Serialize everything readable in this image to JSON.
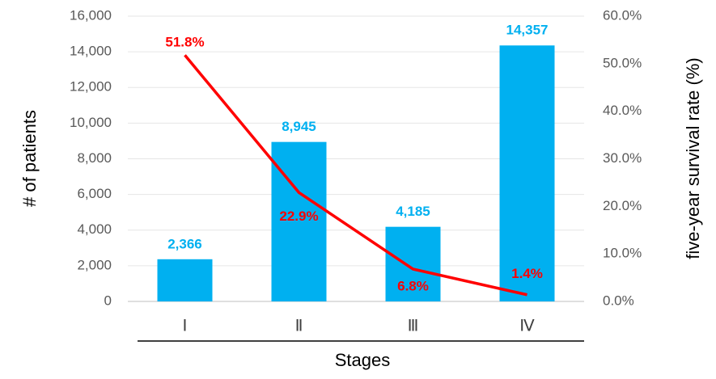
{
  "chart_data": {
    "type": "bar",
    "categories": [
      "Ⅰ",
      "Ⅱ",
      "Ⅲ",
      "Ⅳ"
    ],
    "x_label": "Stages",
    "y_label": "# of patients",
    "y2_label": "five-year survival rate (%)",
    "series": [
      {
        "type": "bar",
        "color": "#00b0f0",
        "values": [
          2366,
          8945,
          4185,
          14357
        ],
        "value_labels": [
          "2,366",
          "8,945",
          "4,185",
          "14,357"
        ]
      },
      {
        "type": "line",
        "axis": "y2",
        "color": "#ff0000",
        "values": [
          51.8,
          22.9,
          6.8,
          1.4
        ],
        "value_labels": [
          "51.8%",
          "22.9%",
          "6.8%",
          "1.4%"
        ]
      }
    ],
    "ylim": [
      0,
      16000
    ],
    "yticks": [
      0,
      {
        "value": 2000,
        "label": "2,000"
      },
      {
        "value": 4000,
        "label": "4,000"
      },
      {
        "value": 6000,
        "label": "6,000"
      },
      {
        "value": 8000,
        "label": "8,000"
      },
      {
        "value": 10000,
        "label": "10,000"
      },
      {
        "value": 12000,
        "label": "12,000"
      },
      {
        "value": 14000,
        "label": "14,000"
      },
      {
        "value": 16000,
        "label": "16,000"
      }
    ],
    "y2lim": [
      0,
      60
    ],
    "y2ticks": [
      {
        "value": 0,
        "label": "0.0%"
      },
      {
        "value": 10,
        "label": "10.0%"
      },
      {
        "value": 20,
        "label": "20.0%"
      },
      {
        "value": 30,
        "label": "30.0%"
      },
      {
        "value": 40,
        "label": "40.0%"
      },
      {
        "value": 50,
        "label": "50.0%"
      },
      {
        "value": 60,
        "label": "60.0%"
      }
    ],
    "grid": true
  }
}
